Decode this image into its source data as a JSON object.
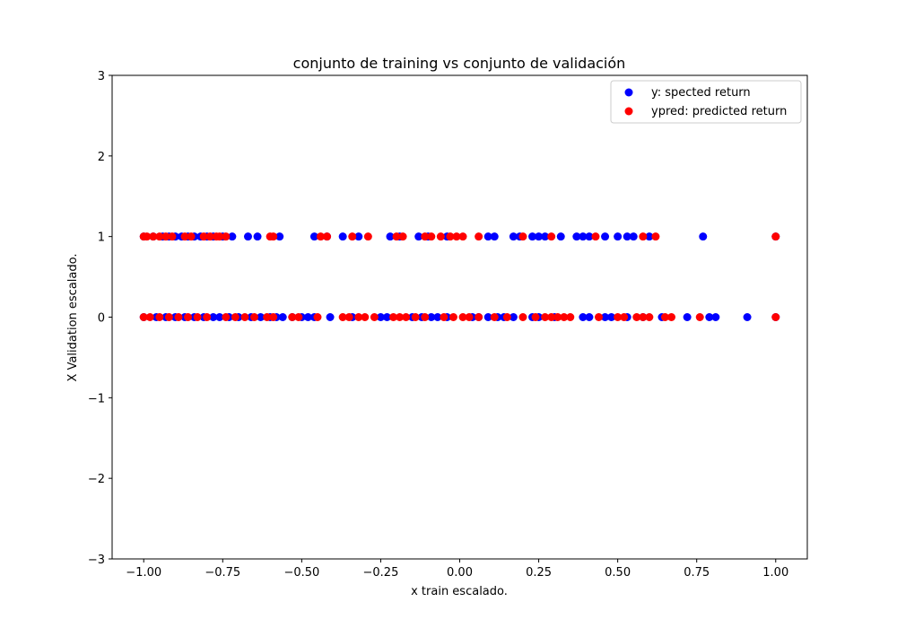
{
  "chart_data": {
    "type": "scatter",
    "title": "conjunto de training vs conjunto de validación",
    "xlabel": "x train escalado.",
    "ylabel": "X Validation escalado.",
    "xlim": [
      -1.1,
      1.1
    ],
    "ylim": [
      -3,
      3
    ],
    "x_ticks": [
      -1.0,
      -0.75,
      -0.5,
      -0.25,
      0.0,
      0.25,
      0.5,
      0.75,
      1.0
    ],
    "x_tick_labels": [
      "−1.00",
      "−0.75",
      "−0.50",
      "−0.25",
      "0.00",
      "0.25",
      "0.50",
      "0.75",
      "1.00"
    ],
    "y_ticks": [
      -3,
      -2,
      -1,
      0,
      1,
      2,
      3
    ],
    "y_tick_labels": [
      "−3",
      "−2",
      "−1",
      "0",
      "1",
      "2",
      "3"
    ],
    "grid": false,
    "legend_position": "top-right",
    "series": [
      {
        "name": "y: spected return",
        "color": "#0000ff",
        "points": [
          {
            "x": -1.0,
            "y": 1
          },
          {
            "x": -0.97,
            "y": 1
          },
          {
            "x": -0.94,
            "y": 1
          },
          {
            "x": -0.92,
            "y": 1
          },
          {
            "x": -0.9,
            "y": 1
          },
          {
            "x": -0.88,
            "y": 1
          },
          {
            "x": -0.86,
            "y": 1
          },
          {
            "x": -0.84,
            "y": 1
          },
          {
            "x": -0.82,
            "y": 1
          },
          {
            "x": -0.8,
            "y": 1
          },
          {
            "x": -0.78,
            "y": 1
          },
          {
            "x": -0.75,
            "y": 1
          },
          {
            "x": -0.72,
            "y": 1
          },
          {
            "x": -0.67,
            "y": 1
          },
          {
            "x": -0.64,
            "y": 1
          },
          {
            "x": -0.57,
            "y": 1
          },
          {
            "x": -0.46,
            "y": 1
          },
          {
            "x": -0.42,
            "y": 1
          },
          {
            "x": -0.37,
            "y": 1
          },
          {
            "x": -0.32,
            "y": 1
          },
          {
            "x": -0.22,
            "y": 1
          },
          {
            "x": -0.19,
            "y": 1
          },
          {
            "x": -0.13,
            "y": 1
          },
          {
            "x": -0.1,
            "y": 1
          },
          {
            "x": -0.04,
            "y": 1
          },
          {
            "x": 0.09,
            "y": 1
          },
          {
            "x": 0.11,
            "y": 1
          },
          {
            "x": 0.17,
            "y": 1
          },
          {
            "x": 0.19,
            "y": 1
          },
          {
            "x": 0.23,
            "y": 1
          },
          {
            "x": 0.25,
            "y": 1
          },
          {
            "x": 0.27,
            "y": 1
          },
          {
            "x": 0.32,
            "y": 1
          },
          {
            "x": 0.37,
            "y": 1
          },
          {
            "x": 0.39,
            "y": 1
          },
          {
            "x": 0.41,
            "y": 1
          },
          {
            "x": 0.46,
            "y": 1
          },
          {
            "x": 0.5,
            "y": 1
          },
          {
            "x": 0.53,
            "y": 1
          },
          {
            "x": 0.55,
            "y": 1
          },
          {
            "x": 0.6,
            "y": 1
          },
          {
            "x": 0.77,
            "y": 1
          },
          {
            "x": 1.0,
            "y": 1
          },
          {
            "x": -1.0,
            "y": 0
          },
          {
            "x": -0.96,
            "y": 0
          },
          {
            "x": -0.93,
            "y": 0
          },
          {
            "x": -0.9,
            "y": 0
          },
          {
            "x": -0.87,
            "y": 0
          },
          {
            "x": -0.84,
            "y": 0
          },
          {
            "x": -0.81,
            "y": 0
          },
          {
            "x": -0.78,
            "y": 0
          },
          {
            "x": -0.76,
            "y": 0
          },
          {
            "x": -0.73,
            "y": 0
          },
          {
            "x": -0.7,
            "y": 0
          },
          {
            "x": -0.66,
            "y": 0
          },
          {
            "x": -0.63,
            "y": 0
          },
          {
            "x": -0.6,
            "y": 0
          },
          {
            "x": -0.58,
            "y": 0
          },
          {
            "x": -0.56,
            "y": 0
          },
          {
            "x": -0.53,
            "y": 0
          },
          {
            "x": -0.5,
            "y": 0
          },
          {
            "x": -0.48,
            "y": 0
          },
          {
            "x": -0.46,
            "y": 0
          },
          {
            "x": -0.41,
            "y": 0
          },
          {
            "x": -0.34,
            "y": 0
          },
          {
            "x": -0.25,
            "y": 0
          },
          {
            "x": -0.23,
            "y": 0
          },
          {
            "x": -0.15,
            "y": 0
          },
          {
            "x": -0.12,
            "y": 0
          },
          {
            "x": -0.09,
            "y": 0
          },
          {
            "x": -0.07,
            "y": 0
          },
          {
            "x": -0.04,
            "y": 0
          },
          {
            "x": 0.04,
            "y": 0
          },
          {
            "x": 0.06,
            "y": 0
          },
          {
            "x": 0.09,
            "y": 0
          },
          {
            "x": 0.12,
            "y": 0
          },
          {
            "x": 0.14,
            "y": 0
          },
          {
            "x": 0.17,
            "y": 0
          },
          {
            "x": 0.23,
            "y": 0
          },
          {
            "x": 0.25,
            "y": 0
          },
          {
            "x": 0.3,
            "y": 0
          },
          {
            "x": 0.39,
            "y": 0
          },
          {
            "x": 0.41,
            "y": 0
          },
          {
            "x": 0.46,
            "y": 0
          },
          {
            "x": 0.48,
            "y": 0
          },
          {
            "x": 0.53,
            "y": 0
          },
          {
            "x": 0.58,
            "y": 0
          },
          {
            "x": 0.64,
            "y": 0
          },
          {
            "x": 0.72,
            "y": 0
          },
          {
            "x": 0.79,
            "y": 0
          },
          {
            "x": 0.81,
            "y": 0
          },
          {
            "x": 0.91,
            "y": 0
          },
          {
            "x": 1.0,
            "y": 0
          }
        ]
      },
      {
        "name": "ypred: predicted return",
        "color": "#ff0000",
        "points": [
          {
            "x": -1.0,
            "y": 1
          },
          {
            "x": -0.99,
            "y": 1
          },
          {
            "x": -0.97,
            "y": 1
          },
          {
            "x": -0.95,
            "y": 1
          },
          {
            "x": -0.93,
            "y": 1
          },
          {
            "x": -0.91,
            "y": 1
          },
          {
            "x": -0.87,
            "y": 1
          },
          {
            "x": -0.85,
            "y": 1
          },
          {
            "x": -0.81,
            "y": 1
          },
          {
            "x": -0.79,
            "y": 1
          },
          {
            "x": -0.77,
            "y": 1
          },
          {
            "x": -0.76,
            "y": 1
          },
          {
            "x": -0.74,
            "y": 1
          },
          {
            "x": -0.6,
            "y": 1
          },
          {
            "x": -0.59,
            "y": 1
          },
          {
            "x": -0.44,
            "y": 1
          },
          {
            "x": -0.42,
            "y": 1
          },
          {
            "x": -0.34,
            "y": 1
          },
          {
            "x": -0.29,
            "y": 1
          },
          {
            "x": -0.2,
            "y": 1
          },
          {
            "x": -0.18,
            "y": 1
          },
          {
            "x": -0.11,
            "y": 1
          },
          {
            "x": -0.09,
            "y": 1
          },
          {
            "x": -0.06,
            "y": 1
          },
          {
            "x": -0.03,
            "y": 1
          },
          {
            "x": -0.01,
            "y": 1
          },
          {
            "x": 0.01,
            "y": 1
          },
          {
            "x": 0.06,
            "y": 1
          },
          {
            "x": 0.2,
            "y": 1
          },
          {
            "x": 0.29,
            "y": 1
          },
          {
            "x": 0.43,
            "y": 1
          },
          {
            "x": 0.58,
            "y": 1
          },
          {
            "x": 0.62,
            "y": 1
          },
          {
            "x": 1.0,
            "y": 1
          },
          {
            "x": -1.0,
            "y": 0
          },
          {
            "x": -0.98,
            "y": 0
          },
          {
            "x": -0.95,
            "y": 0
          },
          {
            "x": -0.92,
            "y": 0
          },
          {
            "x": -0.89,
            "y": 0
          },
          {
            "x": -0.86,
            "y": 0
          },
          {
            "x": -0.83,
            "y": 0
          },
          {
            "x": -0.8,
            "y": 0
          },
          {
            "x": -0.74,
            "y": 0
          },
          {
            "x": -0.71,
            "y": 0
          },
          {
            "x": -0.68,
            "y": 0
          },
          {
            "x": -0.65,
            "y": 0
          },
          {
            "x": -0.61,
            "y": 0
          },
          {
            "x": -0.59,
            "y": 0
          },
          {
            "x": -0.53,
            "y": 0
          },
          {
            "x": -0.51,
            "y": 0
          },
          {
            "x": -0.45,
            "y": 0
          },
          {
            "x": -0.37,
            "y": 0
          },
          {
            "x": -0.35,
            "y": 0
          },
          {
            "x": -0.32,
            "y": 0
          },
          {
            "x": -0.3,
            "y": 0
          },
          {
            "x": -0.27,
            "y": 0
          },
          {
            "x": -0.21,
            "y": 0
          },
          {
            "x": -0.19,
            "y": 0
          },
          {
            "x": -0.17,
            "y": 0
          },
          {
            "x": -0.14,
            "y": 0
          },
          {
            "x": -0.11,
            "y": 0
          },
          {
            "x": -0.05,
            "y": 0
          },
          {
            "x": -0.02,
            "y": 0
          },
          {
            "x": 0.01,
            "y": 0
          },
          {
            "x": 0.03,
            "y": 0
          },
          {
            "x": 0.06,
            "y": 0
          },
          {
            "x": 0.11,
            "y": 0
          },
          {
            "x": 0.15,
            "y": 0
          },
          {
            "x": 0.2,
            "y": 0
          },
          {
            "x": 0.24,
            "y": 0
          },
          {
            "x": 0.27,
            "y": 0
          },
          {
            "x": 0.29,
            "y": 0
          },
          {
            "x": 0.31,
            "y": 0
          },
          {
            "x": 0.33,
            "y": 0
          },
          {
            "x": 0.35,
            "y": 0
          },
          {
            "x": 0.44,
            "y": 0
          },
          {
            "x": 0.5,
            "y": 0
          },
          {
            "x": 0.52,
            "y": 0
          },
          {
            "x": 0.56,
            "y": 0
          },
          {
            "x": 0.58,
            "y": 0
          },
          {
            "x": 0.6,
            "y": 0
          },
          {
            "x": 0.65,
            "y": 0
          },
          {
            "x": 0.67,
            "y": 0
          },
          {
            "x": 0.76,
            "y": 0
          },
          {
            "x": 1.0,
            "y": 0
          }
        ]
      }
    ]
  }
}
